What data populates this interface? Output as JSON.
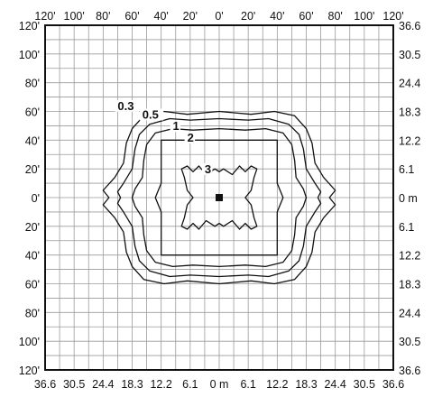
{
  "chart_data": {
    "type": "contour",
    "title": "",
    "top_ticks_ft": [
      "120'",
      "100'",
      "80'",
      "60'",
      "40'",
      "20'",
      "0'",
      "20'",
      "40'",
      "60'",
      "80'",
      "100'",
      "120'"
    ],
    "left_ticks_ft": [
      "120'",
      "100'",
      "80'",
      "60'",
      "40'",
      "20'",
      "0'",
      "20'",
      "40'",
      "60'",
      "80'",
      "100'",
      "120'"
    ],
    "bottom_ticks_m": [
      "36.6",
      "30.5",
      "24.4",
      "18.3",
      "12.2",
      "6.1",
      "0 m",
      "6.1",
      "12.2",
      "18.3",
      "24.4",
      "30.5",
      "36.6"
    ],
    "right_ticks_m": [
      "36.6",
      "30.5",
      "24.4",
      "18.3",
      "12.2",
      "6.1",
      "0 m",
      "6.1",
      "12.2",
      "18.3",
      "24.4",
      "30.5",
      "36.6"
    ],
    "range_ft": [
      -120,
      120
    ],
    "grid": true,
    "grid_step_ft": 10,
    "source_marker": "filled-square",
    "source_position_ft": [
      0,
      0
    ],
    "contour_labels": [
      "0.3",
      "0.5",
      "1",
      "2",
      "3"
    ],
    "contours": [
      {
        "label": "0.3",
        "points": [
          [
            0,
            -60
          ],
          [
            22,
            -58
          ],
          [
            38,
            -60
          ],
          [
            52,
            -57
          ],
          [
            60,
            -48
          ],
          [
            64,
            -38
          ],
          [
            66,
            -24
          ],
          [
            72,
            -14
          ],
          [
            80,
            -5
          ],
          [
            76,
            0
          ],
          [
            80,
            5
          ],
          [
            72,
            14
          ],
          [
            66,
            24
          ],
          [
            64,
            38
          ],
          [
            60,
            48
          ],
          [
            52,
            57
          ],
          [
            38,
            60
          ],
          [
            22,
            58
          ],
          [
            0,
            60
          ],
          [
            -22,
            58
          ],
          [
            -38,
            60
          ],
          [
            -52,
            57
          ],
          [
            -60,
            48
          ],
          [
            -64,
            38
          ],
          [
            -66,
            24
          ],
          [
            -72,
            14
          ],
          [
            -80,
            5
          ],
          [
            -76,
            0
          ],
          [
            -80,
            -5
          ],
          [
            -72,
            -14
          ],
          [
            -66,
            -24
          ],
          [
            -64,
            -38
          ],
          [
            -60,
            -48
          ],
          [
            -52,
            -57
          ],
          [
            -38,
            -60
          ],
          [
            -22,
            -58
          ]
        ]
      },
      {
        "label": "0.5",
        "points": [
          [
            0,
            -55
          ],
          [
            20,
            -54
          ],
          [
            34,
            -55
          ],
          [
            48,
            -51
          ],
          [
            55,
            -44
          ],
          [
            58,
            -34
          ],
          [
            60,
            -20
          ],
          [
            66,
            -10
          ],
          [
            70,
            -4
          ],
          [
            68,
            0
          ],
          [
            70,
            4
          ],
          [
            66,
            10
          ],
          [
            60,
            20
          ],
          [
            58,
            34
          ],
          [
            55,
            44
          ],
          [
            48,
            51
          ],
          [
            34,
            55
          ],
          [
            20,
            54
          ],
          [
            0,
            55
          ],
          [
            -20,
            54
          ],
          [
            -34,
            55
          ],
          [
            -48,
            51
          ],
          [
            -55,
            44
          ],
          [
            -58,
            34
          ],
          [
            -60,
            20
          ],
          [
            -66,
            10
          ],
          [
            -70,
            4
          ],
          [
            -68,
            0
          ],
          [
            -70,
            -4
          ],
          [
            -66,
            -10
          ],
          [
            -60,
            -20
          ],
          [
            -58,
            -34
          ],
          [
            -55,
            -44
          ],
          [
            -48,
            -51
          ],
          [
            -34,
            -55
          ],
          [
            -20,
            -54
          ]
        ]
      },
      {
        "label": "1",
        "points": [
          [
            0,
            -48
          ],
          [
            18,
            -47
          ],
          [
            32,
            -48
          ],
          [
            44,
            -45
          ],
          [
            50,
            -37
          ],
          [
            52,
            -26
          ],
          [
            53,
            -14
          ],
          [
            58,
            -6
          ],
          [
            60,
            0
          ],
          [
            58,
            6
          ],
          [
            53,
            14
          ],
          [
            52,
            26
          ],
          [
            50,
            37
          ],
          [
            44,
            45
          ],
          [
            32,
            48
          ],
          [
            18,
            47
          ],
          [
            0,
            48
          ],
          [
            -18,
            47
          ],
          [
            -32,
            48
          ],
          [
            -44,
            45
          ],
          [
            -50,
            37
          ],
          [
            -52,
            26
          ],
          [
            -53,
            14
          ],
          [
            -58,
            6
          ],
          [
            -60,
            0
          ],
          [
            -58,
            -6
          ],
          [
            -53,
            -14
          ],
          [
            -52,
            -26
          ],
          [
            -50,
            -37
          ],
          [
            -44,
            -45
          ],
          [
            -32,
            -48
          ],
          [
            -18,
            -47
          ]
        ]
      },
      {
        "label": "2",
        "points": [
          [
            0,
            -40
          ],
          [
            16,
            -40
          ],
          [
            32,
            -40
          ],
          [
            40,
            -40
          ],
          [
            40,
            -24
          ],
          [
            40,
            -10
          ],
          [
            44,
            0
          ],
          [
            40,
            10
          ],
          [
            40,
            24
          ],
          [
            40,
            40
          ],
          [
            32,
            40
          ],
          [
            16,
            40
          ],
          [
            0,
            40
          ],
          [
            -16,
            40
          ],
          [
            -32,
            40
          ],
          [
            -40,
            40
          ],
          [
            -40,
            24
          ],
          [
            -40,
            10
          ],
          [
            -44,
            0
          ],
          [
            -40,
            -10
          ],
          [
            -40,
            -24
          ],
          [
            -40,
            -40
          ],
          [
            -32,
            -40
          ],
          [
            -16,
            -40
          ]
        ]
      },
      {
        "label": "3",
        "points": [
          [
            -14,
            22
          ],
          [
            -18,
            18
          ],
          [
            -22,
            22
          ],
          [
            -26,
            20
          ],
          [
            -24,
            14
          ],
          [
            -22,
            5
          ],
          [
            -18,
            0
          ],
          [
            -22,
            -5
          ],
          [
            -24,
            -14
          ],
          [
            -26,
            -20
          ],
          [
            -22,
            -22
          ],
          [
            -18,
            -18
          ],
          [
            -14,
            -22
          ],
          [
            -9,
            -16
          ],
          [
            -3,
            -20
          ],
          [
            0,
            -18
          ],
          [
            3,
            -20
          ],
          [
            9,
            -16
          ],
          [
            14,
            -22
          ],
          [
            18,
            -18
          ],
          [
            22,
            -22
          ],
          [
            26,
            -20
          ],
          [
            24,
            -14
          ],
          [
            22,
            -5
          ],
          [
            18,
            0
          ],
          [
            22,
            5
          ],
          [
            24,
            14
          ],
          [
            26,
            20
          ],
          [
            22,
            22
          ],
          [
            18,
            18
          ],
          [
            14,
            22
          ],
          [
            9,
            16
          ],
          [
            3,
            20
          ],
          [
            0,
            18
          ],
          [
            -3,
            20
          ],
          [
            -9,
            16
          ]
        ]
      }
    ]
  }
}
